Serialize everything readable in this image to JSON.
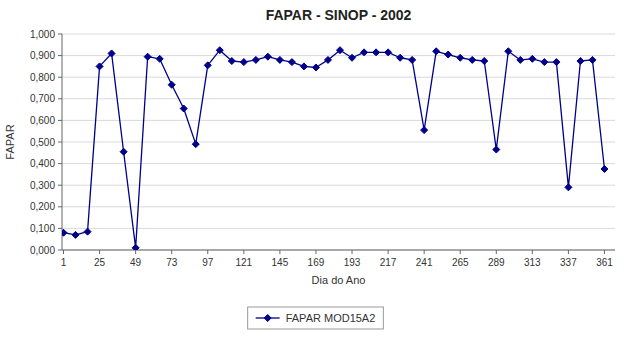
{
  "chart_data": {
    "type": "line",
    "title": "FAPAR - SINOP - 2002",
    "x_label": "Dia do Ano",
    "y_label": "FAPAR",
    "x": [
      1,
      9,
      17,
      25,
      33,
      41,
      49,
      57,
      65,
      73,
      81,
      89,
      97,
      105,
      113,
      121,
      129,
      137,
      145,
      153,
      161,
      169,
      177,
      185,
      193,
      201,
      209,
      217,
      225,
      233,
      241,
      249,
      257,
      265,
      273,
      281,
      289,
      297,
      305,
      313,
      321,
      329,
      337,
      345,
      353,
      361
    ],
    "series": [
      {
        "name": "FAPAR MOD15A2",
        "color": "#00008B",
        "marker": "diamond",
        "values": [
          0.08,
          0.07,
          0.085,
          0.85,
          0.91,
          0.455,
          0.01,
          0.895,
          0.885,
          0.765,
          0.655,
          0.49,
          0.855,
          0.925,
          0.875,
          0.87,
          0.88,
          0.895,
          0.88,
          0.87,
          0.85,
          0.845,
          0.88,
          0.925,
          0.89,
          0.915,
          0.915,
          0.915,
          0.89,
          0.88,
          0.555,
          0.92,
          0.905,
          0.89,
          0.88,
          0.875,
          0.465,
          0.92,
          0.88,
          0.885,
          0.87,
          0.87,
          0.29,
          0.875,
          0.88,
          0.375
        ]
      }
    ],
    "xlim": [
      0,
      368
    ],
    "xticks": [
      1,
      25,
      49,
      73,
      97,
      121,
      145,
      169,
      193,
      217,
      241,
      265,
      289,
      313,
      337,
      361
    ],
    "ylim": [
      0.0,
      1.0
    ],
    "yticks": [
      {
        "value": 0.0,
        "label": "0,000"
      },
      {
        "value": 0.1,
        "label": "0,100"
      },
      {
        "value": 0.2,
        "label": "0,200"
      },
      {
        "value": 0.3,
        "label": "0,300"
      },
      {
        "value": 0.4,
        "label": "0,400"
      },
      {
        "value": 0.5,
        "label": "0,500"
      },
      {
        "value": 0.6,
        "label": "0,600"
      },
      {
        "value": 0.7,
        "label": "0,700"
      },
      {
        "value": 0.8,
        "label": "0,800"
      },
      {
        "value": 0.9,
        "label": "0,900"
      },
      {
        "value": 1.0,
        "label": "1,000"
      }
    ],
    "grid": true,
    "legend": "bottom"
  }
}
